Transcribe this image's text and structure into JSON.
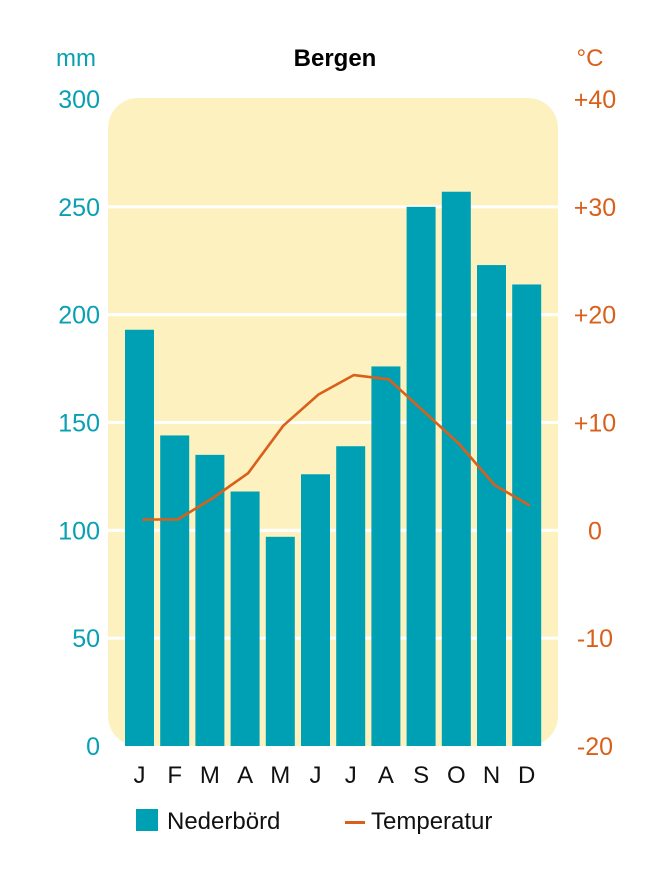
{
  "chart_data": {
    "type": "bar",
    "title": "Bergen",
    "categories": [
      "J",
      "F",
      "M",
      "A",
      "M",
      "J",
      "J",
      "A",
      "S",
      "O",
      "N",
      "D"
    ],
    "y_left": {
      "unit": "mm",
      "ylim": [
        0,
        300
      ],
      "ticks": [
        "0",
        "50",
        "100",
        "150",
        "200",
        "250",
        "300"
      ]
    },
    "y_right": {
      "unit": "°C",
      "ylim": [
        -20,
        40
      ],
      "ticks": [
        "-20",
        "-10",
        "0",
        "+10",
        "+20",
        "+30",
        "+40"
      ]
    },
    "series": [
      {
        "name": "Nederbörd",
        "type": "bar",
        "axis": "left",
        "color": "#00a0b4",
        "values": [
          193,
          144,
          135,
          118,
          97,
          126,
          139,
          176,
          250,
          257,
          223,
          214
        ]
      },
      {
        "name": "Temperatur",
        "type": "line",
        "axis": "right",
        "color": "#d9601a",
        "values": [
          1.0,
          1.0,
          3.0,
          5.3,
          9.7,
          12.6,
          14.4,
          14.0,
          11.0,
          8.0,
          4.2,
          2.3
        ]
      }
    ],
    "grid": true,
    "plot_background": "#fdf2bf",
    "legend_position": "bottom"
  }
}
